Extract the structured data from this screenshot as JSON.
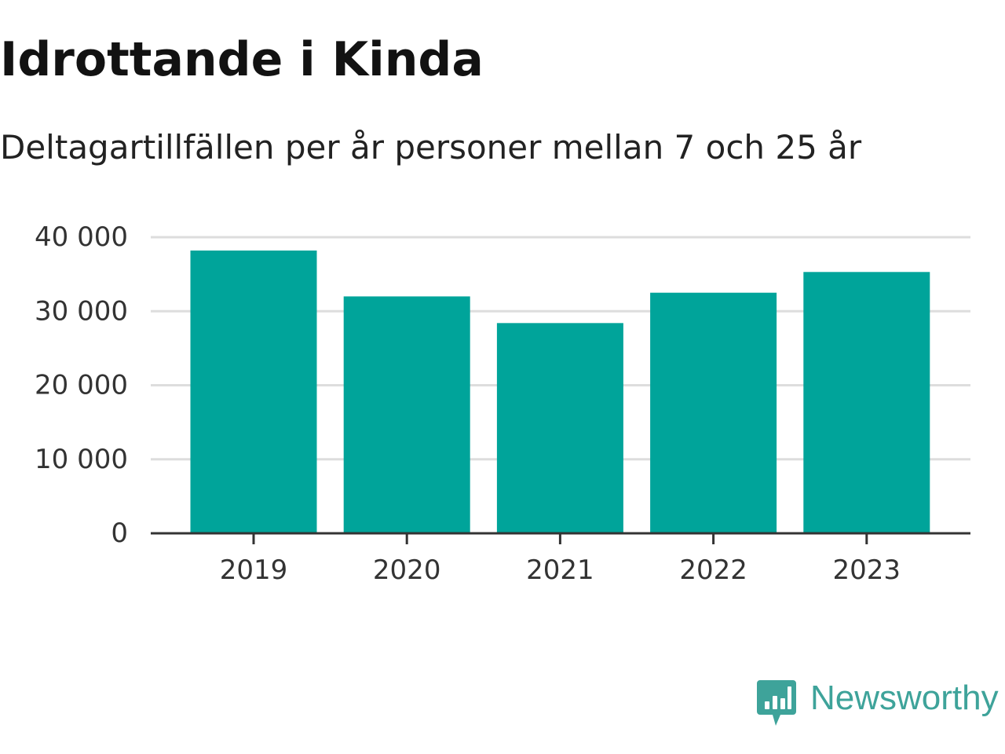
{
  "header": {
    "title": "Idrottande i Kinda",
    "subtitle": "Deltagartillfällen per år personer mellan 7 och 25 år"
  },
  "chart_data": {
    "type": "bar",
    "categories": [
      "2019",
      "2020",
      "2021",
      "2022",
      "2023"
    ],
    "values": [
      38200,
      32000,
      28400,
      32500,
      35300
    ],
    "ylim": [
      0,
      40000
    ],
    "yticks": [
      0,
      10000,
      20000,
      30000,
      40000
    ],
    "ytick_labels": [
      "0",
      "10 000",
      "20 000",
      "30 000",
      "40 000"
    ],
    "xlabel": "",
    "ylabel": "",
    "grid": true,
    "legend": "none",
    "bar_color": "#00a49a",
    "grid_color": "#dddddd",
    "axis_color": "#333333"
  },
  "footer": {
    "brand": "Newsworthy",
    "brand_color": "#3ea39a",
    "brand_icon": "newsworthy-chart-bubble-icon"
  }
}
